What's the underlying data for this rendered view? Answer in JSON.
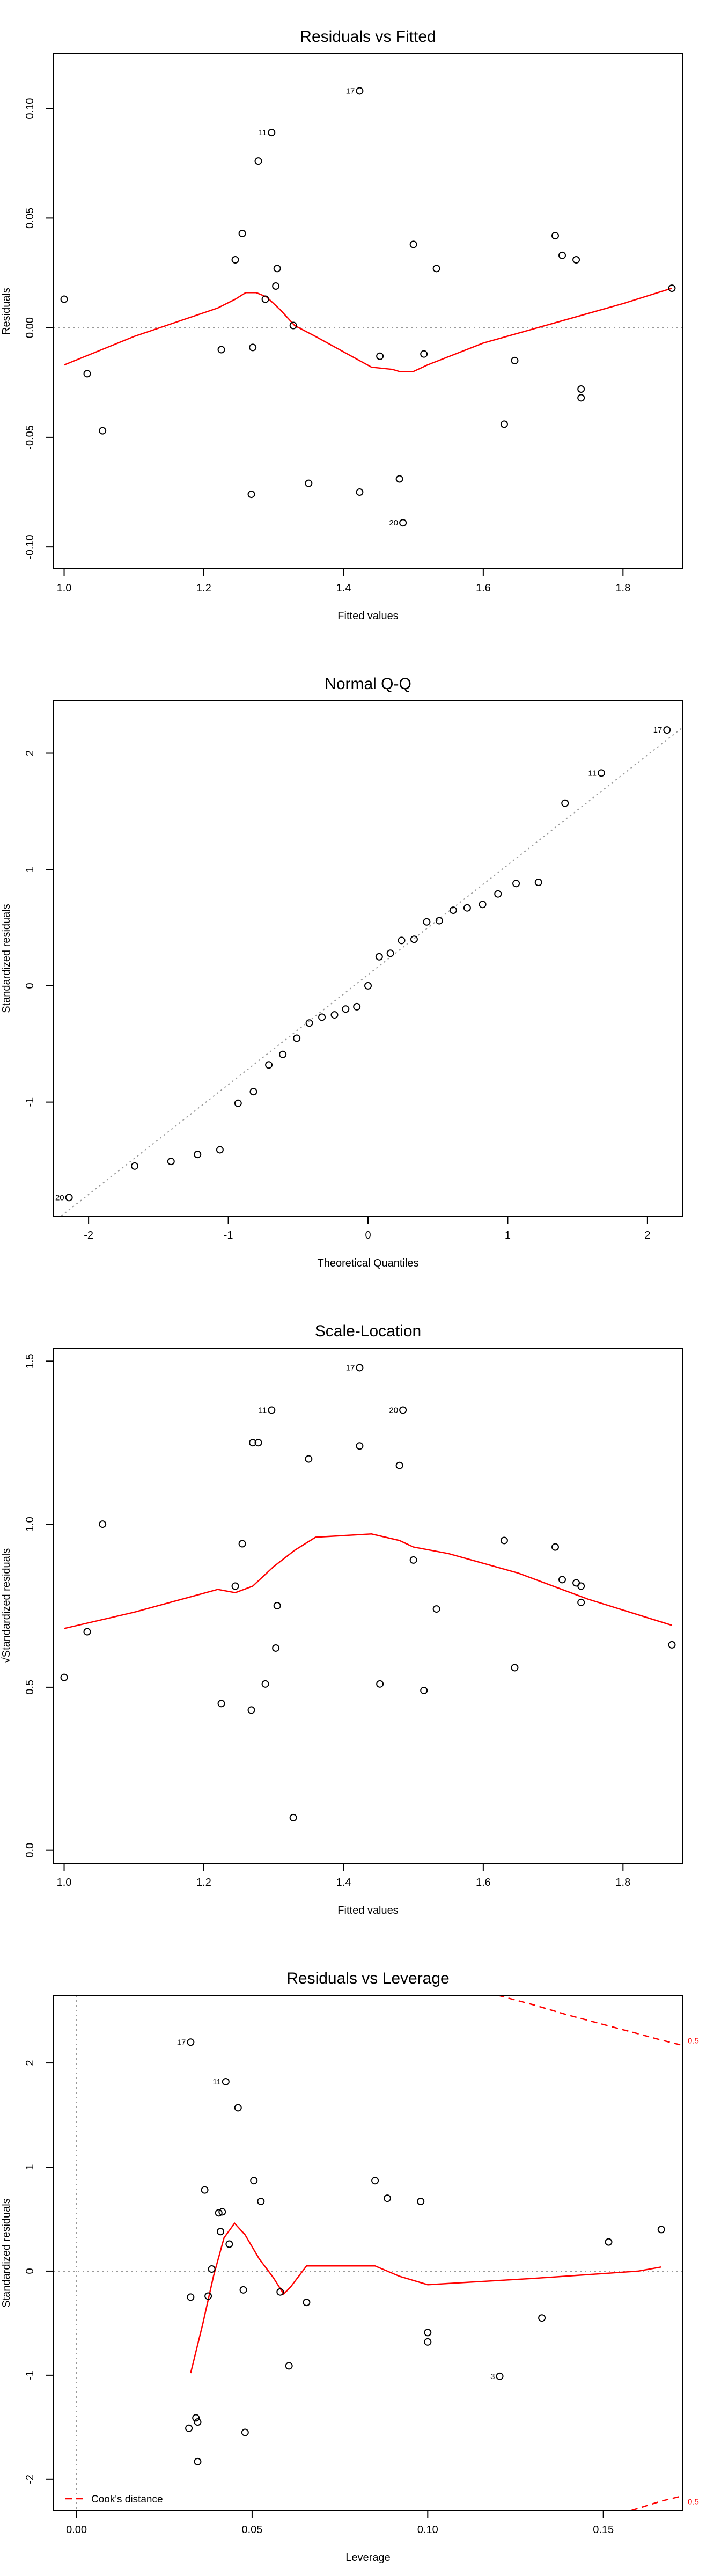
{
  "chart_data": [
    {
      "type": "scatter",
      "title": "Residuals vs Fitted",
      "xlabel": "Fitted values",
      "ylabel": "Residuals",
      "xlim": [
        0.985,
        1.885
      ],
      "ylim": [
        -0.11,
        0.125
      ],
      "xticks": [
        1.0,
        1.2,
        1.4,
        1.6,
        1.8
      ],
      "xtick_labels": [
        "1.0",
        "1.2",
        "1.4",
        "1.6",
        "1.8"
      ],
      "yticks": [
        -0.1,
        -0.05,
        0.0,
        0.05,
        0.1
      ],
      "ytick_labels": [
        "-0.10",
        "-0.05",
        "0.00",
        "0.05",
        "0.10"
      ],
      "hline": 0,
      "points": [
        {
          "x": 1.0,
          "y": 0.013
        },
        {
          "x": 1.033,
          "y": -0.021
        },
        {
          "x": 1.055,
          "y": -0.047
        },
        {
          "x": 1.225,
          "y": -0.01
        },
        {
          "x": 1.245,
          "y": 0.031
        },
        {
          "x": 1.255,
          "y": 0.043
        },
        {
          "x": 1.268,
          "y": -0.076
        },
        {
          "x": 1.27,
          "y": -0.009
        },
        {
          "x": 1.278,
          "y": 0.076
        },
        {
          "x": 1.288,
          "y": 0.013
        },
        {
          "x": 1.297,
          "y": 0.089,
          "label": "11"
        },
        {
          "x": 1.303,
          "y": 0.019
        },
        {
          "x": 1.305,
          "y": 0.027
        },
        {
          "x": 1.328,
          "y": 0.001
        },
        {
          "x": 1.35,
          "y": -0.071
        },
        {
          "x": 1.423,
          "y": -0.075
        },
        {
          "x": 1.423,
          "y": 0.108,
          "label": "17"
        },
        {
          "x": 1.452,
          "y": -0.013
        },
        {
          "x": 1.48,
          "y": -0.069
        },
        {
          "x": 1.485,
          "y": -0.089,
          "label": "20"
        },
        {
          "x": 1.5,
          "y": 0.038
        },
        {
          "x": 1.515,
          "y": -0.012
        },
        {
          "x": 1.533,
          "y": 0.027
        },
        {
          "x": 1.63,
          "y": -0.044
        },
        {
          "x": 1.645,
          "y": -0.015
        },
        {
          "x": 1.703,
          "y": 0.042
        },
        {
          "x": 1.713,
          "y": 0.033
        },
        {
          "x": 1.733,
          "y": 0.031
        },
        {
          "x": 1.74,
          "y": -0.028
        },
        {
          "x": 1.74,
          "y": -0.032
        },
        {
          "x": 1.87,
          "y": 0.018
        }
      ],
      "smooth": [
        [
          1.0,
          -0.017
        ],
        [
          1.1,
          -0.004
        ],
        [
          1.22,
          0.009
        ],
        [
          1.245,
          0.013
        ],
        [
          1.26,
          0.016
        ],
        [
          1.275,
          0.016
        ],
        [
          1.29,
          0.014
        ],
        [
          1.31,
          0.008
        ],
        [
          1.33,
          0.001
        ],
        [
          1.36,
          -0.004
        ],
        [
          1.4,
          -0.011
        ],
        [
          1.44,
          -0.018
        ],
        [
          1.47,
          -0.019
        ],
        [
          1.48,
          -0.02
        ],
        [
          1.5,
          -0.02
        ],
        [
          1.52,
          -0.017
        ],
        [
          1.6,
          -0.007
        ],
        [
          1.7,
          0.002
        ],
        [
          1.8,
          0.011
        ],
        [
          1.87,
          0.018
        ]
      ]
    },
    {
      "type": "scatter",
      "title": "Normal Q-Q",
      "xlabel": "Theoretical Quantiles",
      "ylabel": "Standardized residuals",
      "xlim": [
        -2.25,
        2.25
      ],
      "ylim": [
        -1.98,
        2.45
      ],
      "xticks": [
        -2,
        -1,
        0,
        1,
        2
      ],
      "xtick_labels": [
        "-2",
        "-1",
        "0",
        "1",
        "2"
      ],
      "yticks": [
        -1,
        0,
        1,
        2
      ],
      "ytick_labels": [
        "-1",
        "0",
        "1",
        "2"
      ],
      "refline": [
        [
          -2.25,
          -2.03
        ],
        [
          2.25,
          2.22
        ]
      ],
      "points": [
        {
          "x": -2.14,
          "y": -1.82,
          "label": "20"
        },
        {
          "x": -1.67,
          "y": -1.55
        },
        {
          "x": -1.41,
          "y": -1.51
        },
        {
          "x": -1.22,
          "y": -1.45
        },
        {
          "x": -1.06,
          "y": -1.41
        },
        {
          "x": -0.93,
          "y": -1.01
        },
        {
          "x": -0.82,
          "y": -0.91
        },
        {
          "x": -0.71,
          "y": -0.68
        },
        {
          "x": -0.61,
          "y": -0.59
        },
        {
          "x": -0.51,
          "y": -0.45
        },
        {
          "x": -0.42,
          "y": -0.32
        },
        {
          "x": -0.33,
          "y": -0.27
        },
        {
          "x": -0.24,
          "y": -0.25
        },
        {
          "x": -0.16,
          "y": -0.2
        },
        {
          "x": -0.08,
          "y": -0.18
        },
        {
          "x": 0.0,
          "y": 0.0
        },
        {
          "x": 0.08,
          "y": 0.25
        },
        {
          "x": 0.16,
          "y": 0.28
        },
        {
          "x": 0.24,
          "y": 0.39
        },
        {
          "x": 0.33,
          "y": 0.4
        },
        {
          "x": 0.42,
          "y": 0.55
        },
        {
          "x": 0.51,
          "y": 0.56
        },
        {
          "x": 0.61,
          "y": 0.65
        },
        {
          "x": 0.71,
          "y": 0.67
        },
        {
          "x": 0.82,
          "y": 0.7
        },
        {
          "x": 0.93,
          "y": 0.79
        },
        {
          "x": 1.06,
          "y": 0.88
        },
        {
          "x": 1.22,
          "y": 0.89
        },
        {
          "x": 1.41,
          "y": 1.57
        },
        {
          "x": 1.67,
          "y": 1.83,
          "label": "11"
        },
        {
          "x": 2.14,
          "y": 2.2,
          "label": "17"
        }
      ]
    },
    {
      "type": "scatter",
      "title": "Scale-Location",
      "xlabel": "Fitted values",
      "ylabel": "√Standardized residuals",
      "xlim": [
        0.985,
        1.885
      ],
      "ylim": [
        -0.04,
        1.54
      ],
      "xticks": [
        1.0,
        1.2,
        1.4,
        1.6,
        1.8
      ],
      "xtick_labels": [
        "1.0",
        "1.2",
        "1.4",
        "1.6",
        "1.8"
      ],
      "yticks": [
        0.0,
        0.5,
        1.0,
        1.5
      ],
      "ytick_labels": [
        "0.0",
        "0.5",
        "1.0",
        "1.5"
      ],
      "points": [
        {
          "x": 1.0,
          "y": 0.53
        },
        {
          "x": 1.033,
          "y": 0.67
        },
        {
          "x": 1.055,
          "y": 1.0
        },
        {
          "x": 1.225,
          "y": 0.45
        },
        {
          "x": 1.245,
          "y": 0.81
        },
        {
          "x": 1.255,
          "y": 0.94
        },
        {
          "x": 1.268,
          "y": 0.43
        },
        {
          "x": 1.27,
          "y": 1.25
        },
        {
          "x": 1.278,
          "y": 1.25
        },
        {
          "x": 1.288,
          "y": 0.51
        },
        {
          "x": 1.297,
          "y": 1.35,
          "label": "11"
        },
        {
          "x": 1.303,
          "y": 0.62
        },
        {
          "x": 1.305,
          "y": 0.75
        },
        {
          "x": 1.328,
          "y": 0.1
        },
        {
          "x": 1.35,
          "y": 1.2
        },
        {
          "x": 1.423,
          "y": 1.24
        },
        {
          "x": 1.423,
          "y": 1.48,
          "label": "17"
        },
        {
          "x": 1.452,
          "y": 0.51
        },
        {
          "x": 1.48,
          "y": 1.18
        },
        {
          "x": 1.485,
          "y": 1.35,
          "label": "20"
        },
        {
          "x": 1.5,
          "y": 0.89
        },
        {
          "x": 1.515,
          "y": 0.49
        },
        {
          "x": 1.533,
          "y": 0.74
        },
        {
          "x": 1.63,
          "y": 0.95
        },
        {
          "x": 1.645,
          "y": 0.56
        },
        {
          "x": 1.703,
          "y": 0.93
        },
        {
          "x": 1.713,
          "y": 0.83
        },
        {
          "x": 1.733,
          "y": 0.82
        },
        {
          "x": 1.74,
          "y": 0.76
        },
        {
          "x": 1.74,
          "y": 0.81
        },
        {
          "x": 1.87,
          "y": 0.63
        }
      ],
      "smooth": [
        [
          1.0,
          0.68
        ],
        [
          1.1,
          0.73
        ],
        [
          1.22,
          0.8
        ],
        [
          1.245,
          0.79
        ],
        [
          1.27,
          0.81
        ],
        [
          1.3,
          0.87
        ],
        [
          1.33,
          0.92
        ],
        [
          1.36,
          0.96
        ],
        [
          1.44,
          0.97
        ],
        [
          1.48,
          0.95
        ],
        [
          1.5,
          0.93
        ],
        [
          1.55,
          0.91
        ],
        [
          1.65,
          0.85
        ],
        [
          1.75,
          0.77
        ],
        [
          1.87,
          0.69
        ]
      ]
    },
    {
      "type": "scatter",
      "title": "Residuals vs Leverage",
      "xlabel": "Leverage",
      "ylabel": "Standardized residuals",
      "xlim": [
        -0.0065,
        0.1725
      ],
      "ylim": [
        -2.3,
        2.65
      ],
      "xticks": [
        0.0,
        0.05,
        0.1,
        0.15
      ],
      "xtick_labels": [
        "0.00",
        "0.05",
        "0.10",
        "0.15"
      ],
      "yticks": [
        -2,
        -1,
        0,
        1,
        2
      ],
      "ytick_labels": [
        "-2",
        "-1",
        "0",
        "1",
        "2"
      ],
      "hline": 0,
      "vline": 0,
      "points": [
        {
          "x": 0.0325,
          "y": 2.2,
          "label": "17"
        },
        {
          "x": 0.0425,
          "y": 1.82,
          "label": "11"
        },
        {
          "x": 0.046,
          "y": 1.57
        },
        {
          "x": 0.0365,
          "y": 0.78
        },
        {
          "x": 0.0505,
          "y": 0.87
        },
        {
          "x": 0.0525,
          "y": 0.67
        },
        {
          "x": 0.0405,
          "y": 0.56
        },
        {
          "x": 0.0415,
          "y": 0.57
        },
        {
          "x": 0.041,
          "y": 0.38
        },
        {
          "x": 0.0435,
          "y": 0.26
        },
        {
          "x": 0.0385,
          "y": 0.02
        },
        {
          "x": 0.0325,
          "y": -0.25
        },
        {
          "x": 0.0375,
          "y": -0.24
        },
        {
          "x": 0.0475,
          "y": -0.18
        },
        {
          "x": 0.058,
          "y": -0.2
        },
        {
          "x": 0.0605,
          "y": -0.91
        },
        {
          "x": 0.0655,
          "y": -0.3
        },
        {
          "x": 0.085,
          "y": 0.87
        },
        {
          "x": 0.0885,
          "y": 0.7
        },
        {
          "x": 0.098,
          "y": 0.67
        },
        {
          "x": 0.1,
          "y": -0.59
        },
        {
          "x": 0.1,
          "y": -0.68
        },
        {
          "x": 0.1205,
          "y": -1.01,
          "label": "3"
        },
        {
          "x": 0.1325,
          "y": -0.45
        },
        {
          "x": 0.1515,
          "y": 0.28
        },
        {
          "x": 0.1665,
          "y": 0.4
        },
        {
          "x": 0.032,
          "y": -1.51
        },
        {
          "x": 0.034,
          "y": -1.41
        },
        {
          "x": 0.0345,
          "y": -1.45
        },
        {
          "x": 0.0345,
          "y": -1.83
        },
        {
          "x": 0.048,
          "y": -1.55
        }
      ],
      "smooth": [
        [
          0.0325,
          -0.98
        ],
        [
          0.036,
          -0.5
        ],
        [
          0.039,
          -0.05
        ],
        [
          0.042,
          0.32
        ],
        [
          0.045,
          0.46
        ],
        [
          0.048,
          0.35
        ],
        [
          0.052,
          0.12
        ],
        [
          0.056,
          -0.06
        ],
        [
          0.059,
          -0.22
        ],
        [
          0.061,
          -0.15
        ],
        [
          0.0655,
          0.05
        ],
        [
          0.075,
          0.05
        ],
        [
          0.085,
          0.05
        ],
        [
          0.092,
          -0.05
        ],
        [
          0.1,
          -0.13
        ],
        [
          0.13,
          -0.07
        ],
        [
          0.16,
          0.0
        ],
        [
          0.1665,
          0.04
        ]
      ],
      "cook_upper": [
        [
          0.12,
          2.65
        ],
        [
          0.13,
          2.56
        ],
        [
          0.14,
          2.46
        ],
        [
          0.15,
          2.37
        ],
        [
          0.16,
          2.28
        ],
        [
          0.1665,
          2.22
        ],
        [
          0.1725,
          2.17
        ]
      ],
      "cook_lower": [
        [
          0.158,
          -2.3
        ],
        [
          0.1665,
          -2.21
        ],
        [
          0.1725,
          -2.16
        ]
      ],
      "cook_labels": [
        "0.5",
        "0.5"
      ],
      "legend": "Cook's distance"
    }
  ]
}
